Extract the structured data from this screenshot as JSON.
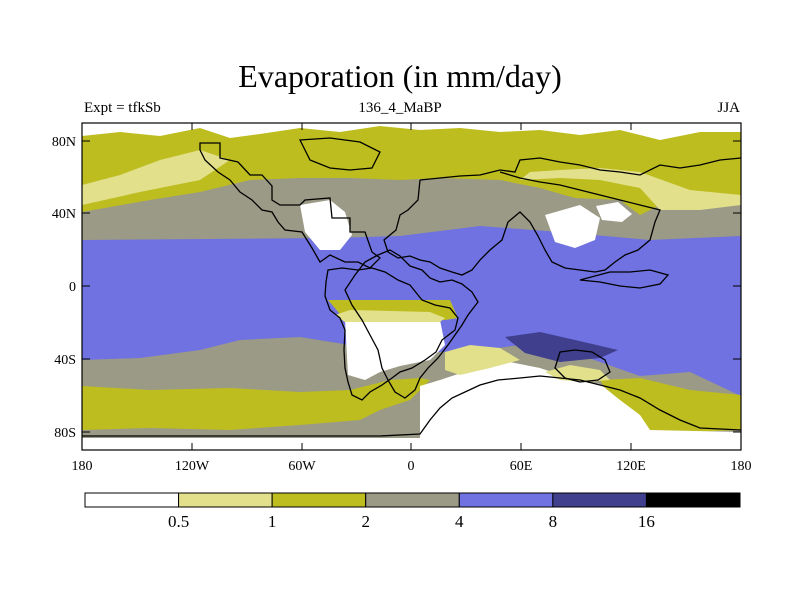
{
  "title": "Evaporation (in mm/day)",
  "subtitle_left": "Expt = tfkSb",
  "subtitle_center": "136_4_MaBP",
  "subtitle_right": "JJA",
  "lat_labels": [
    "80N",
    "40N",
    "0",
    "40S",
    "80S"
  ],
  "lon_labels": [
    "180",
    "120W",
    "60W",
    "0",
    "60E",
    "120E",
    "180"
  ],
  "colorbar": {
    "levels": [
      "0.5",
      "1",
      "2",
      "4",
      "8",
      "16"
    ],
    "colors": [
      "#ffffff",
      "#e2e08a",
      "#bdbd20",
      "#9b9a86",
      "#6f72e0",
      "#3f3f8e",
      "#000000"
    ]
  },
  "legend_colors": {
    "white": "#ffffff",
    "lightyellow": "#e2e08a",
    "olive": "#bdbd20",
    "gray": "#9b9a86",
    "blue": "#6f72e0",
    "navy": "#3f3f8e"
  }
}
